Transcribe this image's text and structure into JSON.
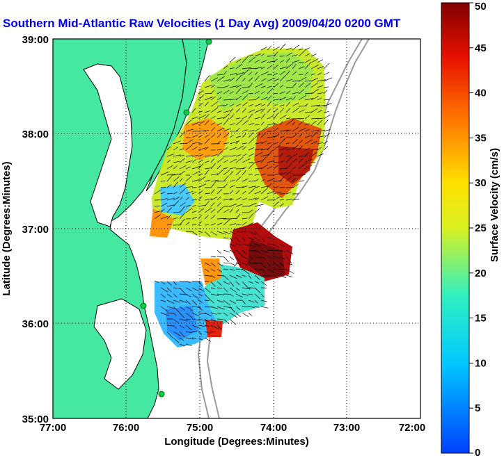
{
  "title": "Southern Mid-Atlantic Raw Velocities (1 Day Avg) 2009/04/20 0200 GMT",
  "map": {
    "xlabel": "Longitude (Degrees:Minutes)",
    "ylabel": "Latitude (Degrees:Minutes)",
    "xticks": [
      "77:00",
      "76:00",
      "75:00",
      "74:00",
      "73:00",
      "72:00"
    ],
    "yticks": [
      "39:00",
      "38:00",
      "37:00",
      "36:00",
      "35:00"
    ],
    "land_color": "#44e8a0",
    "grid": "dotted"
  },
  "colorbar": {
    "label": "Surface Velocity (cm/s)",
    "ticks": [
      "50",
      "45",
      "40",
      "35",
      "30",
      "25",
      "20",
      "15",
      "10",
      "5",
      "0"
    ],
    "range": [
      0,
      50
    ]
  }
}
